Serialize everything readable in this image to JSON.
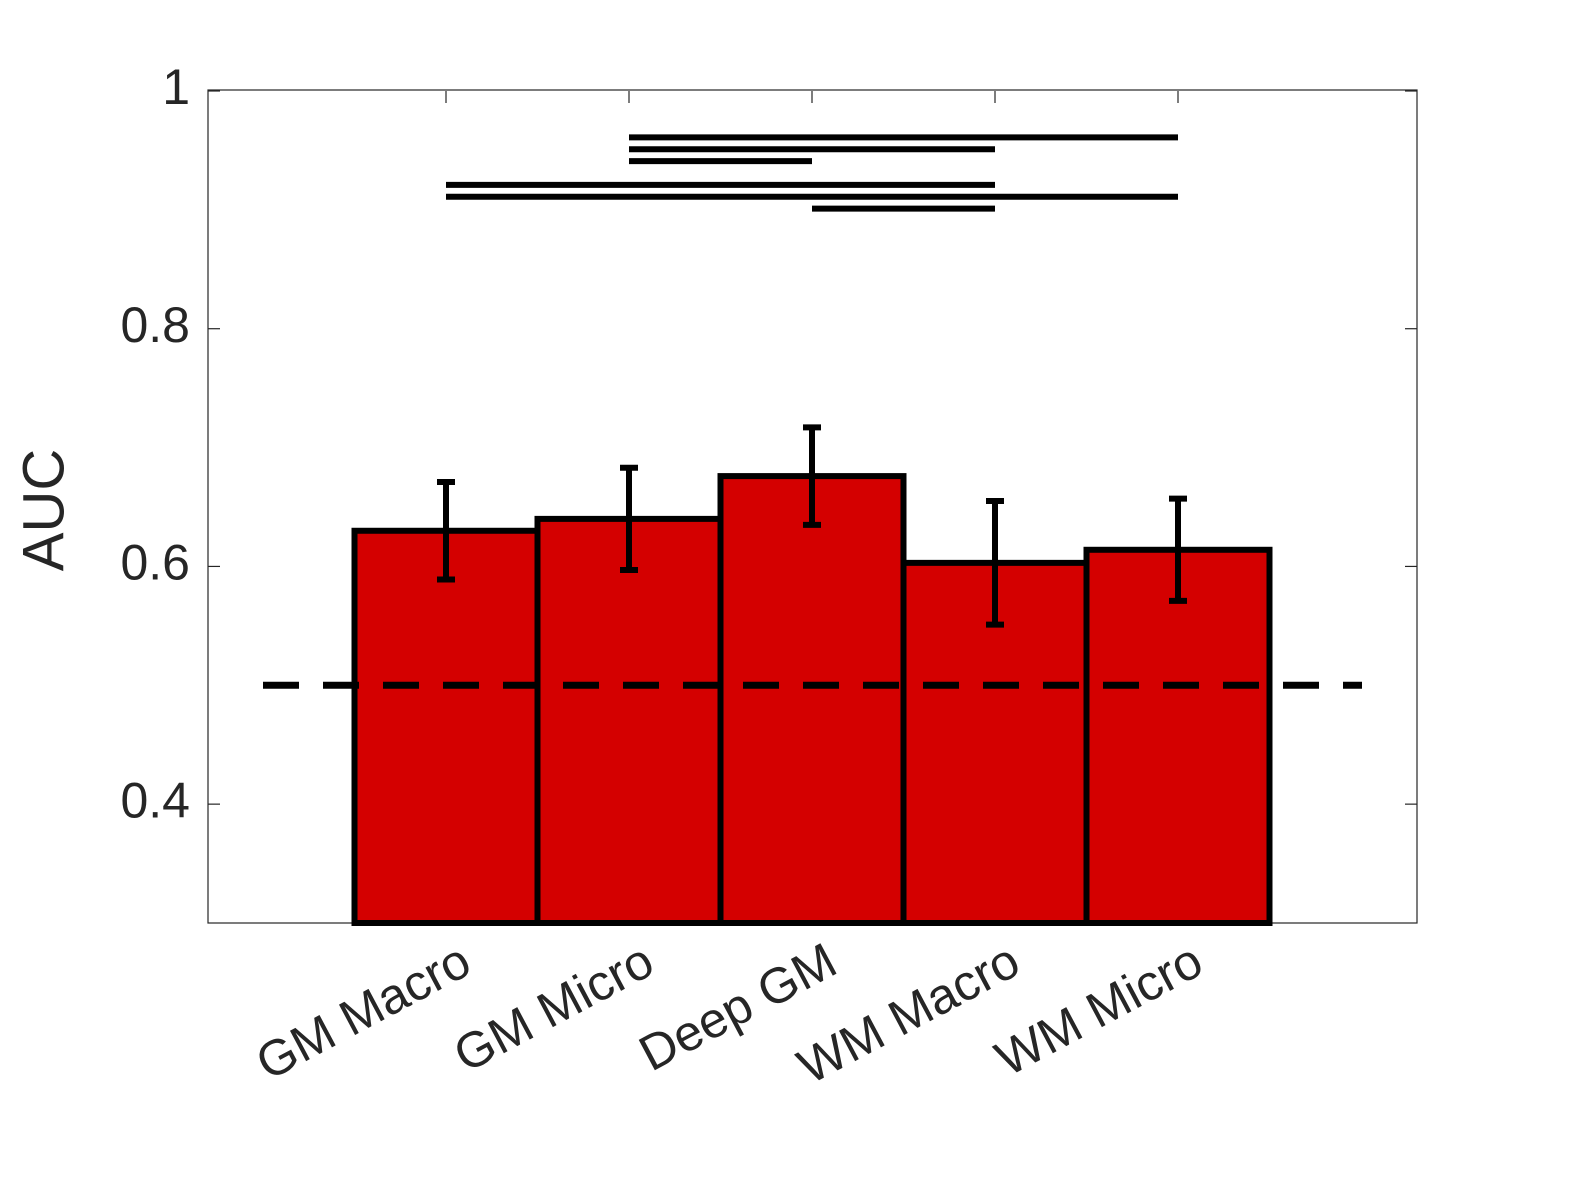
{
  "chart_data": {
    "type": "bar",
    "categories": [
      "GM Macro",
      "GM Micro",
      "Deep GM",
      "WM Macro",
      "WM Micro"
    ],
    "values": [
      0.63,
      0.64,
      0.676,
      0.603,
      0.614
    ],
    "errors": [
      0.041,
      0.043,
      0.041,
      0.052,
      0.043
    ],
    "color": "#d40000",
    "y_label": "AUC",
    "ylim": [
      0.3,
      1
    ],
    "yticks": [
      0.4,
      0.6,
      0.8,
      1
    ],
    "reference_line": 0.5,
    "significance": [
      {
        "from": 1,
        "to": 4,
        "y": 0.961
      },
      {
        "from": 1,
        "to": 3,
        "y": 0.951
      },
      {
        "from": 1,
        "to": 2,
        "y": 0.941
      },
      {
        "from": 0,
        "to": 3,
        "y": 0.921
      },
      {
        "from": 0,
        "to": 4,
        "y": 0.911
      },
      {
        "from": 2,
        "to": 3,
        "y": 0.901
      }
    ]
  }
}
